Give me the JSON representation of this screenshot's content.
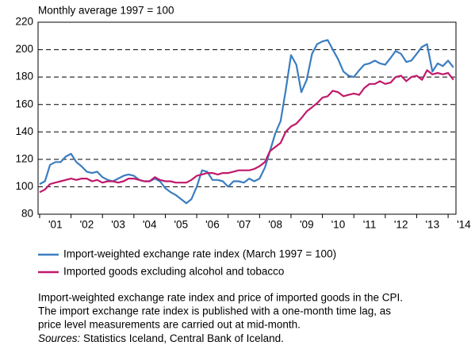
{
  "chart_data": {
    "type": "line",
    "subtitle": "Monthly average 1997 = 100",
    "xlim": [
      2000.95,
      2014.25
    ],
    "ylim": [
      80,
      220
    ],
    "yticks": [
      80,
      100,
      120,
      140,
      160,
      180,
      200,
      220
    ],
    "grid": true,
    "x_tick_marks": [
      2001,
      2002,
      2003,
      2004,
      2005,
      2006,
      2007,
      2008,
      2009,
      2010,
      2011,
      2012,
      2013,
      2014
    ],
    "xticks": [
      {
        "value": 2001.5,
        "label": "'01"
      },
      {
        "value": 2002.5,
        "label": "'02"
      },
      {
        "value": 2003.5,
        "label": "'03"
      },
      {
        "value": 2004.5,
        "label": "'04"
      },
      {
        "value": 2005.5,
        "label": "'05"
      },
      {
        "value": 2006.5,
        "label": "'06"
      },
      {
        "value": 2007.5,
        "label": "'07"
      },
      {
        "value": 2008.5,
        "label": "'08"
      },
      {
        "value": 2009.5,
        "label": "'09"
      },
      {
        "value": 2010.5,
        "label": "'10"
      },
      {
        "value": 2011.5,
        "label": "'11"
      },
      {
        "value": 2012.5,
        "label": "'12"
      },
      {
        "value": 2013.5,
        "label": "'13"
      },
      {
        "value": 2014.5,
        "label": "'14"
      }
    ],
    "x": [
      2001,
      2001.17,
      2001.33,
      2001.5,
      2001.67,
      2001.83,
      2002,
      2002.17,
      2002.33,
      2002.5,
      2002.67,
      2002.83,
      2003,
      2003.17,
      2003.33,
      2003.5,
      2003.67,
      2003.83,
      2004,
      2004.17,
      2004.33,
      2004.5,
      2004.67,
      2004.83,
      2005,
      2005.17,
      2005.33,
      2005.5,
      2005.67,
      2005.83,
      2006,
      2006.17,
      2006.33,
      2006.5,
      2006.67,
      2006.83,
      2007,
      2007.17,
      2007.33,
      2007.5,
      2007.67,
      2007.83,
      2008,
      2008.17,
      2008.33,
      2008.5,
      2008.67,
      2008.83,
      2009,
      2009.17,
      2009.33,
      2009.5,
      2009.67,
      2009.83,
      2010,
      2010.17,
      2010.33,
      2010.5,
      2010.67,
      2010.83,
      2011,
      2011.17,
      2011.33,
      2011.5,
      2011.67,
      2011.83,
      2012,
      2012.17,
      2012.33,
      2012.5,
      2012.67,
      2012.83,
      2013,
      2013.17,
      2013.33,
      2013.5,
      2013.67,
      2013.83,
      2014,
      2014.17
    ],
    "series": [
      {
        "name": "Import-weighted exchange rate index (March 1997 = 100)",
        "color": "#3a7dc0",
        "values": [
          102,
          104,
          116,
          118,
          118,
          122,
          124,
          118,
          115,
          111,
          110,
          111,
          107,
          105,
          104,
          106,
          108,
          109,
          108,
          105,
          104,
          104,
          106,
          104,
          99,
          96,
          94,
          91,
          88,
          91,
          100,
          112,
          111,
          105,
          105,
          104,
          100,
          104,
          104,
          103,
          106,
          104,
          106,
          114,
          126,
          139,
          148,
          170,
          196,
          189,
          169,
          178,
          197,
          204,
          206,
          207,
          200,
          193,
          184,
          181,
          180,
          185,
          189,
          190,
          192,
          190,
          189,
          194,
          199,
          197,
          191,
          192,
          197,
          202,
          204,
          184,
          190,
          188,
          192,
          187
        ]
      },
      {
        "name": "Imported goods excluding alcohol and tobacco",
        "color": "#c0196b",
        "values": [
          96,
          98,
          102,
          103,
          104,
          105,
          106,
          105,
          106,
          106,
          104,
          105,
          103,
          104,
          104,
          103,
          104,
          106,
          106,
          105,
          104,
          104,
          107,
          105,
          104,
          104,
          103,
          103,
          103,
          105,
          108,
          109,
          110,
          110,
          109,
          110,
          110,
          111,
          112,
          112,
          112,
          113,
          115,
          118,
          126,
          129,
          132,
          140,
          144,
          146,
          150,
          155,
          158,
          161,
          165,
          166,
          170,
          169,
          166,
          167,
          168,
          167,
          172,
          175,
          175,
          177,
          175,
          176,
          180,
          181,
          177,
          180,
          181,
          178,
          185,
          182,
          183,
          182,
          183,
          178
        ]
      }
    ],
    "caption": [
      "Import-weighted exchange rate index and price of imported goods in the CPI.",
      "The import exchange rate index is published with a one-month time lag, as",
      "price level measurements are carried out at mid-month."
    ],
    "sources_label": "Sources:",
    "sources": "Statistics Iceland, Central Bank of Iceland."
  }
}
